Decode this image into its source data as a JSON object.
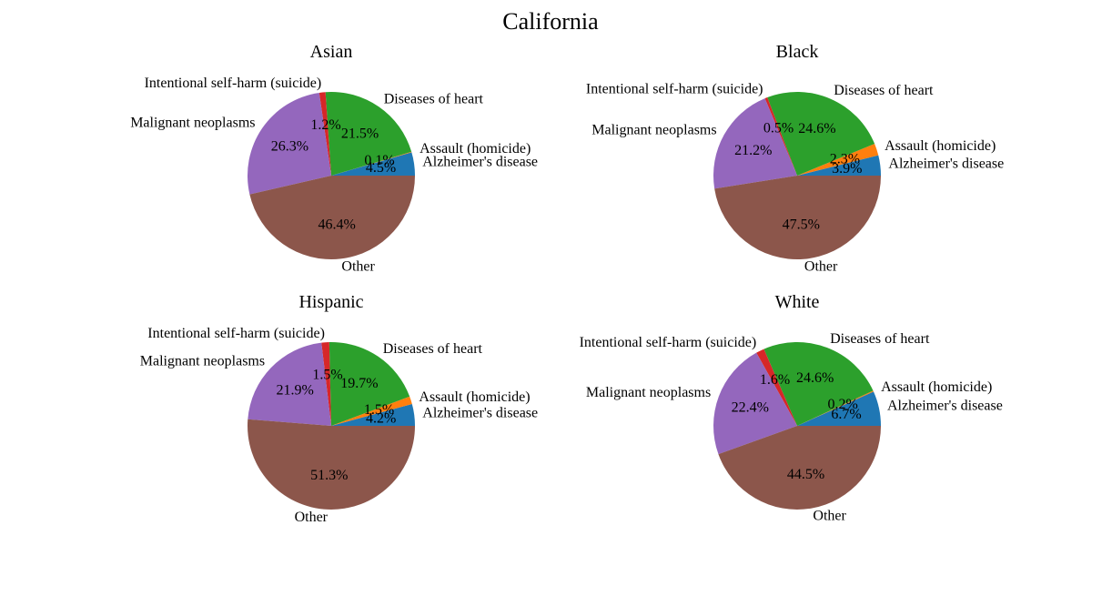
{
  "chart_data": {
    "type": "pie",
    "suptitle": "California",
    "categories": [
      "Alzheimer's disease",
      "Assault (homicide)",
      "Diseases of heart",
      "Intentional self-harm (suicide)",
      "Malignant neoplasms",
      "Other"
    ],
    "colors": [
      "#1f77b4",
      "#ff7f0e",
      "#2ca02c",
      "#d62728",
      "#9467bd",
      "#8c564b"
    ],
    "charts": [
      {
        "title": "Asian",
        "values": [
          4.5,
          0.1,
          21.5,
          1.2,
          26.3,
          46.4
        ],
        "pct_labels": [
          "4.5%",
          "0.1%",
          "21.5%",
          "1.2%",
          "26.3%",
          "46.4%"
        ]
      },
      {
        "title": "Black",
        "values": [
          3.9,
          2.3,
          24.6,
          0.5,
          21.2,
          47.5
        ],
        "pct_labels": [
          "3.9%",
          "2.3%",
          "24.6%",
          "0.5%",
          "21.2%",
          "47.5%"
        ]
      },
      {
        "title": "Hispanic",
        "values": [
          4.2,
          1.5,
          19.7,
          1.5,
          21.9,
          51.3
        ],
        "pct_labels": [
          "4.2%",
          "1.5%",
          "19.7%",
          "1.5%",
          "21.9%",
          "51.3%"
        ]
      },
      {
        "title": "White",
        "values": [
          6.7,
          0.2,
          24.6,
          1.6,
          22.4,
          44.5
        ],
        "pct_labels": [
          "6.7%",
          "0.2%",
          "24.6%",
          "1.6%",
          "22.4%",
          "44.5%"
        ]
      }
    ]
  }
}
